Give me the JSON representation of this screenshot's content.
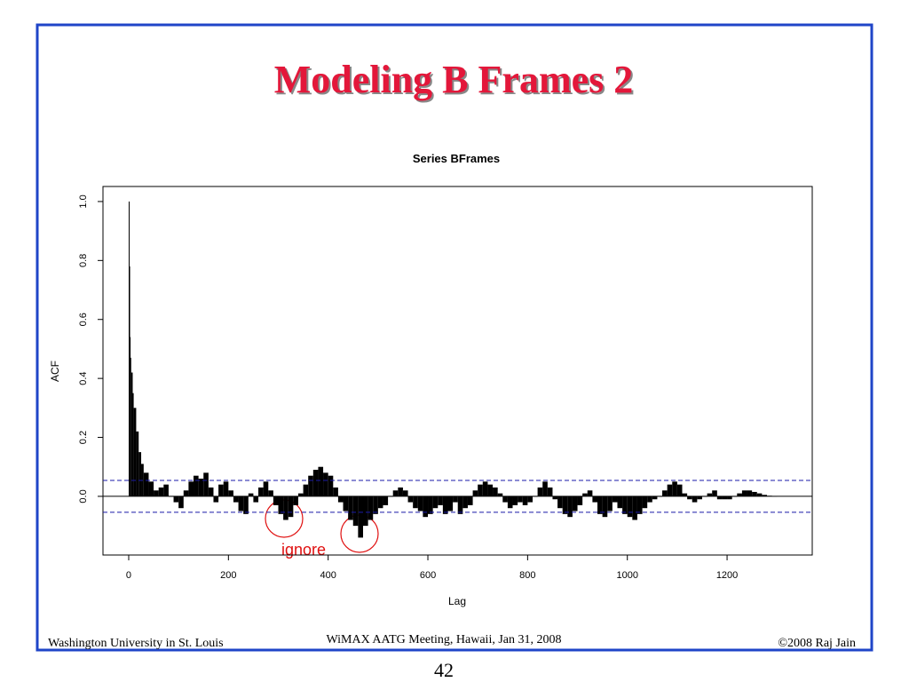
{
  "slide": {
    "title": "Modeling B Frames 2",
    "footer_left": "Washington University in St. Louis",
    "footer_center": "WiMAX AATG Meeting, Hawaii, Jan 31, 2008",
    "footer_right": "©2008 Raj Jain",
    "page_number": "42"
  },
  "chart_data": {
    "type": "acf",
    "title": "Series  BFrames",
    "x_label": "Lag",
    "y_label": "ACF",
    "annotation": "ignore",
    "color": "#000000",
    "ci_color": "#1a1aa8",
    "ci": [
      0.054,
      -0.054
    ],
    "xlim": [
      -51.6,
      1370.8
    ],
    "ylim": [
      -0.199,
      1.051
    ],
    "xticks": [
      0,
      200,
      400,
      600,
      800,
      1000,
      1200
    ],
    "yticks": [
      {
        "value": 0,
        "label": "0.0"
      },
      0.2,
      0.4,
      0.6,
      0.8,
      {
        "value": 1,
        "label": "1.0"
      }
    ],
    "x": [
      0,
      1,
      2,
      3,
      5,
      8,
      10,
      15,
      20,
      25,
      30,
      40,
      50,
      60,
      70,
      80,
      90,
      100,
      110,
      120,
      130,
      140,
      150,
      160,
      170,
      180,
      190,
      200,
      210,
      220,
      230,
      240,
      250,
      260,
      270,
      280,
      290,
      300,
      310,
      320,
      330,
      340,
      350,
      360,
      370,
      380,
      390,
      400,
      410,
      420,
      430,
      440,
      450,
      460,
      470,
      480,
      490,
      500,
      510,
      520,
      530,
      540,
      550,
      560,
      570,
      580,
      590,
      600,
      610,
      620,
      630,
      640,
      650,
      660,
      670,
      680,
      690,
      700,
      710,
      720,
      730,
      740,
      750,
      760,
      770,
      780,
      790,
      800,
      810,
      820,
      830,
      840,
      850,
      860,
      870,
      880,
      890,
      900,
      910,
      920,
      930,
      940,
      950,
      960,
      970,
      980,
      990,
      1000,
      1010,
      1020,
      1030,
      1040,
      1050,
      1060,
      1070,
      1080,
      1090,
      1100,
      1110,
      1120,
      1130,
      1140,
      1150,
      1160,
      1170,
      1180,
      1190,
      1200,
      1210,
      1220,
      1230,
      1240,
      1250,
      1260,
      1270,
      1280,
      1290
    ],
    "values": [
      1.0,
      0.78,
      0.54,
      0.47,
      0.42,
      0.35,
      0.3,
      0.22,
      0.15,
      0.11,
      0.08,
      0.05,
      0.02,
      0.03,
      0.04,
      0.0,
      -0.02,
      -0.04,
      0.02,
      0.05,
      0.07,
      0.06,
      0.08,
      0.03,
      -0.02,
      0.04,
      0.05,
      0.02,
      -0.02,
      -0.05,
      -0.06,
      0.01,
      -0.02,
      0.03,
      0.05,
      0.02,
      -0.03,
      -0.06,
      -0.08,
      -0.07,
      -0.03,
      0.01,
      0.04,
      0.07,
      0.09,
      0.1,
      0.08,
      0.07,
      0.03,
      -0.02,
      -0.05,
      -0.08,
      -0.1,
      -0.14,
      -0.1,
      -0.08,
      -0.06,
      -0.04,
      -0.03,
      0.0,
      0.02,
      0.03,
      0.02,
      -0.02,
      -0.04,
      -0.05,
      -0.07,
      -0.06,
      -0.04,
      -0.03,
      -0.06,
      -0.05,
      -0.02,
      -0.06,
      -0.04,
      -0.03,
      0.02,
      0.04,
      0.05,
      0.04,
      0.03,
      0.01,
      -0.02,
      -0.04,
      -0.03,
      -0.02,
      -0.03,
      -0.02,
      0.0,
      0.03,
      0.05,
      0.03,
      -0.01,
      -0.04,
      -0.06,
      -0.07,
      -0.05,
      -0.03,
      0.01,
      0.02,
      -0.02,
      -0.06,
      -0.07,
      -0.05,
      -0.02,
      -0.04,
      -0.06,
      -0.07,
      -0.08,
      -0.06,
      -0.04,
      -0.02,
      -0.01,
      0.0,
      0.02,
      0.04,
      0.05,
      0.04,
      0.01,
      -0.01,
      -0.02,
      -0.01,
      0.0,
      0.01,
      0.02,
      -0.01,
      -0.01,
      -0.01,
      0.0,
      0.01,
      0.02,
      0.02,
      0.015,
      0.01,
      0.005,
      0.002,
      0.001
    ]
  }
}
